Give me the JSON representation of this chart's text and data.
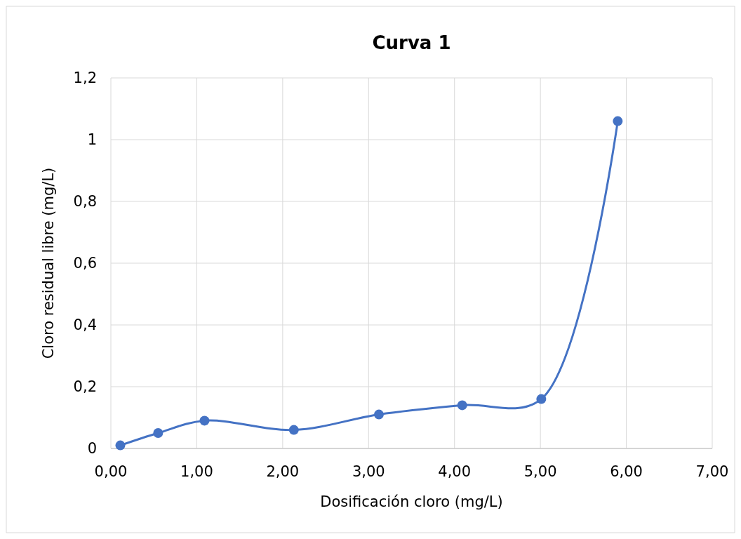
{
  "chart_data": {
    "type": "line",
    "title": "Curva 1",
    "xlabel": "Dosificación cloro (mg/L)",
    "ylabel": "Cloro residual libre (mg/L)",
    "x": [
      0.11,
      0.55,
      1.09,
      2.13,
      3.12,
      4.09,
      5.01,
      5.9
    ],
    "series": [
      {
        "color": "#4472c4",
        "values": [
          0.01,
          0.05,
          0.09,
          0.06,
          0.11,
          0.14,
          0.16,
          1.06
        ]
      }
    ],
    "xlim": [
      0,
      7
    ],
    "ylim": [
      0,
      1.2
    ],
    "xticks": [
      {
        "value": 0,
        "label": "0,00"
      },
      {
        "value": 1,
        "label": "1,00"
      },
      {
        "value": 2,
        "label": "2,00"
      },
      {
        "value": 3,
        "label": "3,00"
      },
      {
        "value": 4,
        "label": "4,00"
      },
      {
        "value": 5,
        "label": "5,00"
      },
      {
        "value": 6,
        "label": "6,00"
      },
      {
        "value": 7,
        "label": "7,00"
      }
    ],
    "yticks": [
      0,
      {
        "value": 0.2,
        "label": "0,2"
      },
      {
        "value": 0.4,
        "label": "0,4"
      },
      {
        "value": 0.6,
        "label": "0,6"
      },
      {
        "value": 0.8,
        "label": "0,8"
      },
      1,
      {
        "value": 1.2,
        "label": "1,2"
      }
    ],
    "grid": true,
    "marker": "circle",
    "line_style": "solid"
  }
}
